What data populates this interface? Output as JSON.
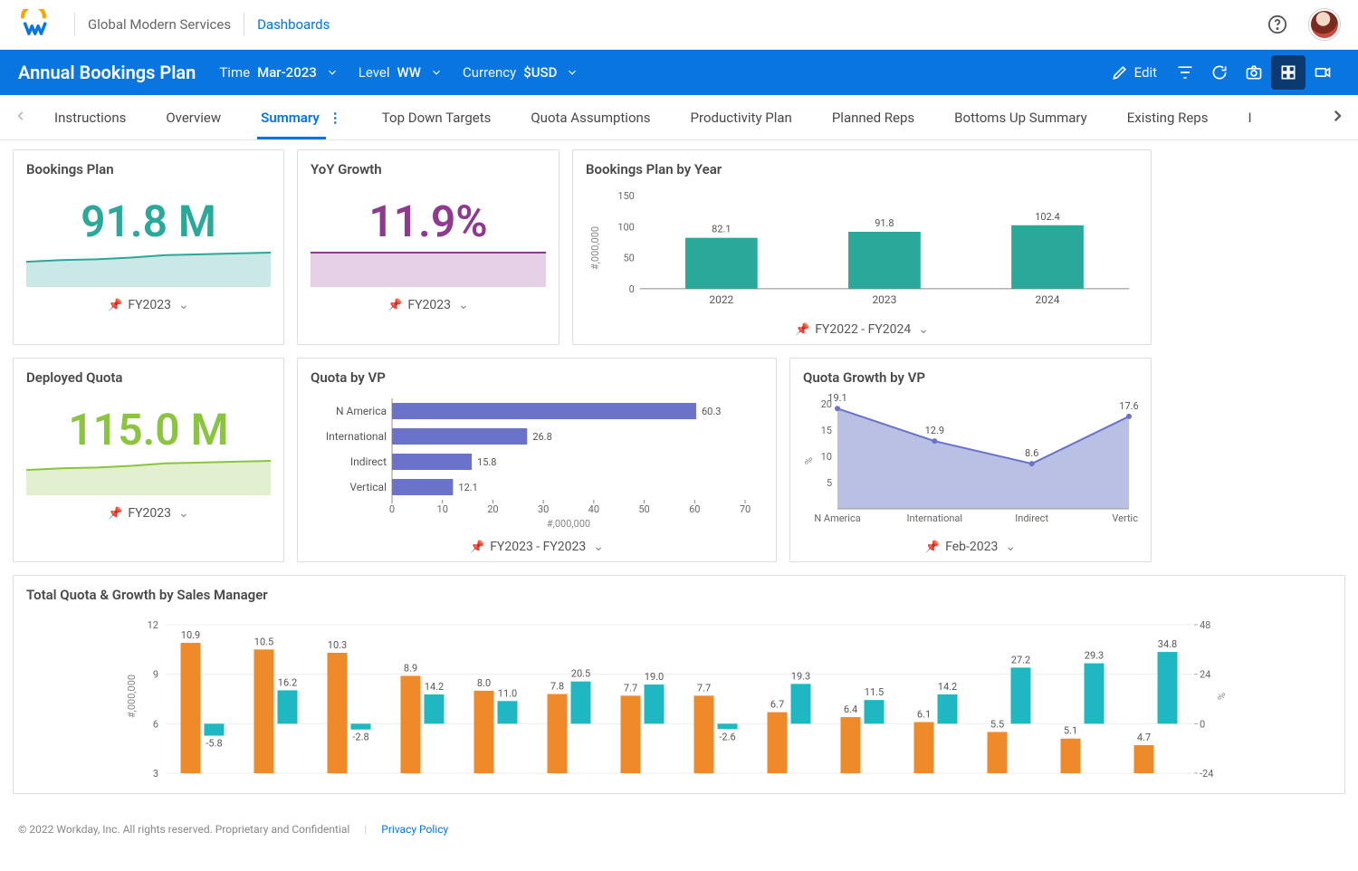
{
  "header": {
    "org": "Global Modern Services",
    "crumb": "Dashboards"
  },
  "bluebar": {
    "title": "Annual Bookings Plan",
    "filters": {
      "time_label": "Time",
      "time_value": "Mar-2023",
      "level_label": "Level",
      "level_value": "WW",
      "currency_label": "Currency",
      "currency_value": "$USD"
    },
    "edit_label": "Edit"
  },
  "tabs": [
    "Instructions",
    "Overview",
    "Summary",
    "Top Down Targets",
    "Quota Assumptions",
    "Productivity Plan",
    "Planned Reps",
    "Bottoms Up Summary",
    "Existing Reps"
  ],
  "active_tab": "Summary",
  "colors": {
    "teal": "#2aa89a",
    "teal_fill": "rgba(42,168,154,0.25)",
    "purple": "#8e3a8f",
    "purple_fill": "rgba(180,120,190,0.35)",
    "green": "#8bc43f",
    "green_fill": "rgba(139,196,63,0.25)",
    "blue_bar": "#6a72c9",
    "blue_fill": "rgba(106,114,201,0.5)",
    "orange": "#ef8a2b",
    "cyan": "#1fb7c2"
  },
  "cards": {
    "bookings_plan": {
      "title": "Bookings Plan",
      "value": "91.8 M",
      "pin": "FY2023",
      "spark": [
        28,
        30,
        31,
        33,
        36,
        37,
        38,
        39
      ]
    },
    "yoy_growth": {
      "title": "YoY Growth",
      "value": "11.9%",
      "pin": "FY2023",
      "spark": [
        5,
        5,
        5,
        5,
        5,
        5,
        5,
        5
      ]
    },
    "bookings_by_year": {
      "title": "Bookings Plan by Year",
      "pin": "FY2022 - FY2024",
      "type": "bar",
      "ylabel": "#,000,000",
      "ylim": [
        0,
        150
      ],
      "yticks": [
        0,
        50,
        100,
        150
      ],
      "categories": [
        "2022",
        "2023",
        "2024"
      ],
      "values": [
        82.1,
        91.8,
        102.4
      ],
      "bar_color": "#2aa89a"
    },
    "deployed_quota": {
      "title": "Deployed Quota",
      "value": "115.0 M",
      "pin": "FY2023",
      "spark": [
        28,
        30,
        31,
        33,
        36,
        37,
        38,
        39
      ]
    },
    "quota_by_vp": {
      "title": "Quota by VP",
      "pin": "FY2023 - FY2023",
      "type": "hbar",
      "xlabel": "#,000,000",
      "xlim": [
        0,
        70
      ],
      "xticks": [
        0,
        10,
        20,
        30,
        40,
        50,
        60,
        70
      ],
      "categories": [
        "N America",
        "International",
        "Indirect",
        "Vertical"
      ],
      "values": [
        60.3,
        26.8,
        15.8,
        12.1
      ],
      "bar_color": "#6a72c9"
    },
    "quota_growth_by_vp": {
      "title": "Quota Growth by VP",
      "pin": "Feb-2023",
      "type": "area",
      "ylabel": "%",
      "ylim": [
        0,
        20
      ],
      "yticks": [
        5,
        10,
        15,
        20
      ],
      "categories": [
        "N America",
        "International",
        "Indirect",
        "Vertical"
      ],
      "values": [
        19.1,
        12.9,
        8.6,
        17.6
      ],
      "line_color": "#6a72c9",
      "fill_color": "rgba(130,138,205,0.55)"
    },
    "total_quota_by_mgr": {
      "title": "Total Quota & Growth by Sales Manager",
      "type": "grouped-bar-dual-axis",
      "left_ylabel": "#,000,000",
      "right_ylabel": "%",
      "left_ylim": [
        3,
        12
      ],
      "left_yticks": [
        3,
        6,
        9,
        12
      ],
      "right_ylim": [
        -24,
        48
      ],
      "right_yticks": [
        -24,
        0,
        24,
        48
      ],
      "orange_values": [
        10.9,
        10.5,
        10.3,
        8.9,
        8.0,
        7.8,
        7.7,
        7.7,
        6.7,
        6.4,
        6.1,
        5.5,
        5.1,
        4.7
      ],
      "cyan_values": [
        -5.8,
        16.2,
        -2.8,
        14.2,
        11.0,
        20.5,
        19.0,
        -2.6,
        19.3,
        11.5,
        14.2,
        27.2,
        29.3,
        34.8
      ],
      "orange_color": "#ef8a2b",
      "cyan_color": "#1fb7c2"
    }
  },
  "footer": {
    "copyright": "© 2022 Workday, Inc. All rights reserved. Proprietary and Confidential",
    "link": "Privacy Policy"
  }
}
